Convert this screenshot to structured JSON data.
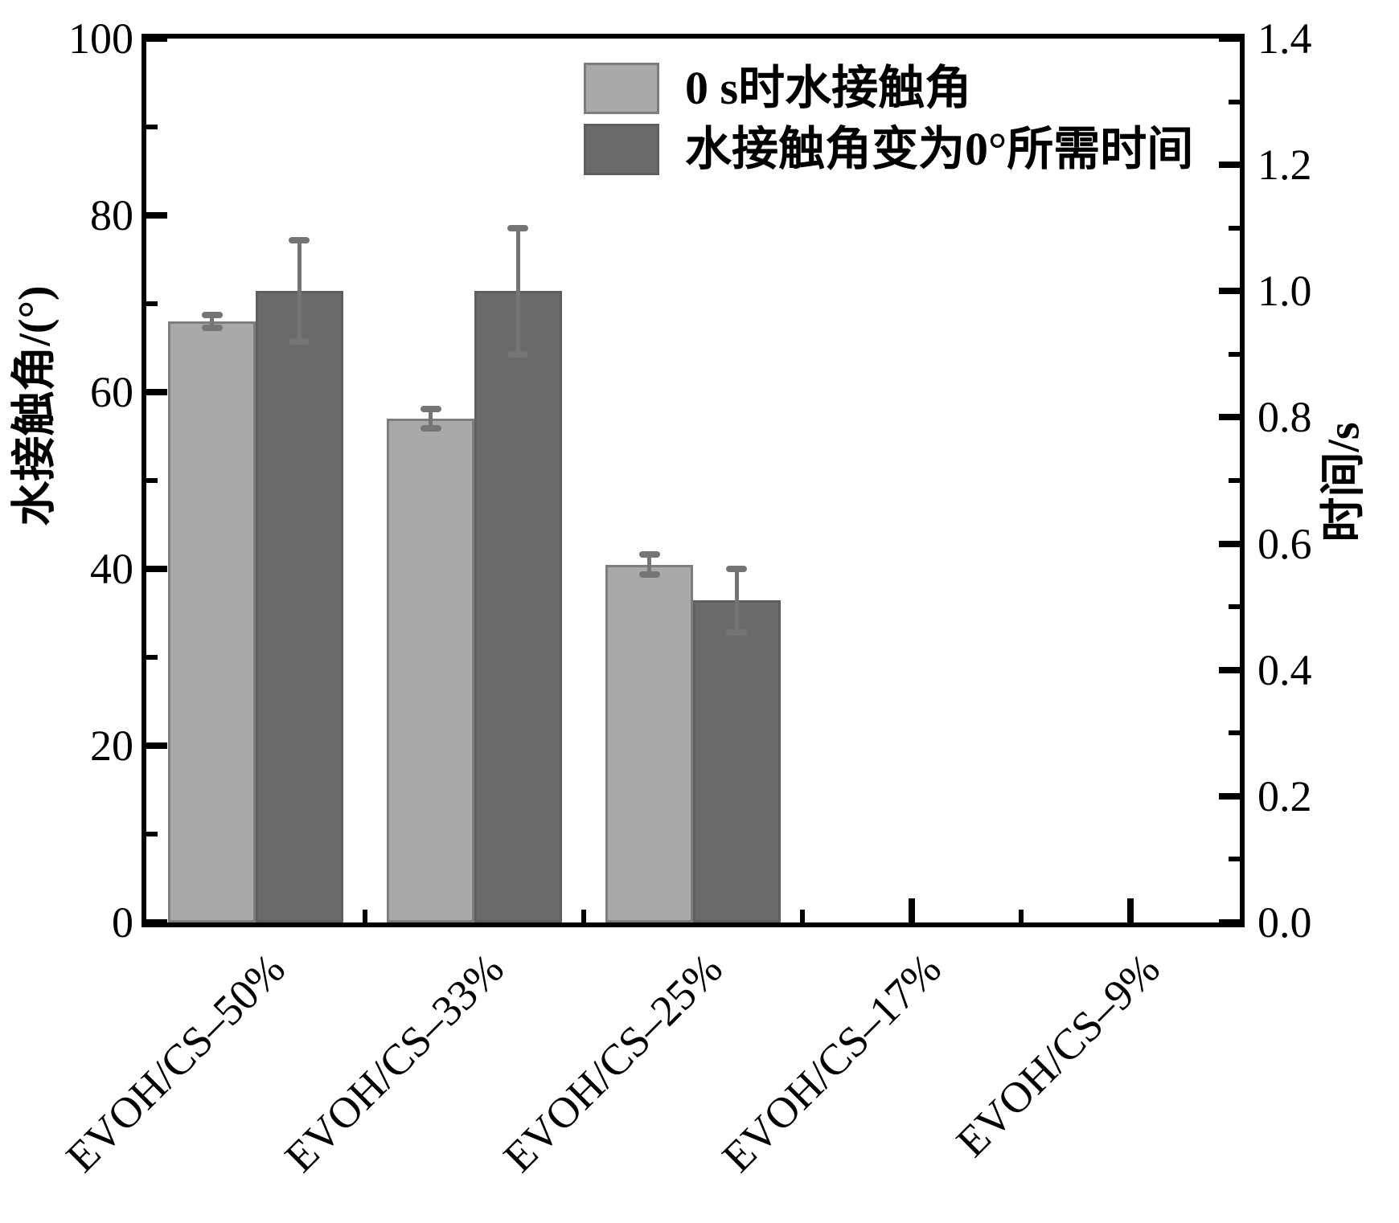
{
  "figure": {
    "background": "#ffffff",
    "frame_color": "#000000"
  },
  "chart_data": {
    "type": "bar",
    "title": "",
    "categories": [
      "EVOH/CS–50%",
      "EVOH/CS–33%",
      "EVOH/CS–25%",
      "EVOH/CS–17%",
      "EVOH/CS–9%"
    ],
    "series": [
      {
        "name": "0 s时水接触角",
        "axis": "left",
        "color": "#a9a9a9",
        "edge_color": "#7d7d7d",
        "values": [
          68,
          57,
          40.5,
          0,
          0
        ],
        "errors": [
          0.7,
          1.1,
          1.1,
          0,
          0
        ]
      },
      {
        "name": "水接触角变为0°所需时间",
        "axis": "right",
        "color": "#6a6a6a",
        "edge_color": "#5e5e5e",
        "values": [
          1.0,
          1.0,
          0.51,
          0,
          0
        ],
        "errors": [
          0.08,
          0.1,
          0.05,
          0,
          0
        ]
      }
    ],
    "left_axis": {
      "label": "水接触角/(°)",
      "min": 0,
      "max": 100,
      "major_ticks": [
        0,
        20,
        40,
        60,
        80,
        100
      ],
      "minor_ticks": [
        10,
        30,
        50,
        70,
        90
      ]
    },
    "right_axis": {
      "label": "时间/s",
      "min": 0,
      "max": 1.4,
      "major_tick_labels": [
        "0.0",
        "0.2",
        "0.4",
        "0.6",
        "0.8",
        "1.0",
        "1.2",
        "1.4"
      ],
      "major_ticks": [
        0,
        0.2,
        0.4,
        0.6,
        0.8,
        1.0,
        1.2,
        1.4
      ],
      "minor_ticks": [
        0.1,
        0.3,
        0.5,
        0.7,
        0.9,
        1.1,
        1.3
      ]
    },
    "bar_slot_fraction": 0.4,
    "error_bar_color": "#757575",
    "grid": false,
    "legend_position": "top-center"
  }
}
